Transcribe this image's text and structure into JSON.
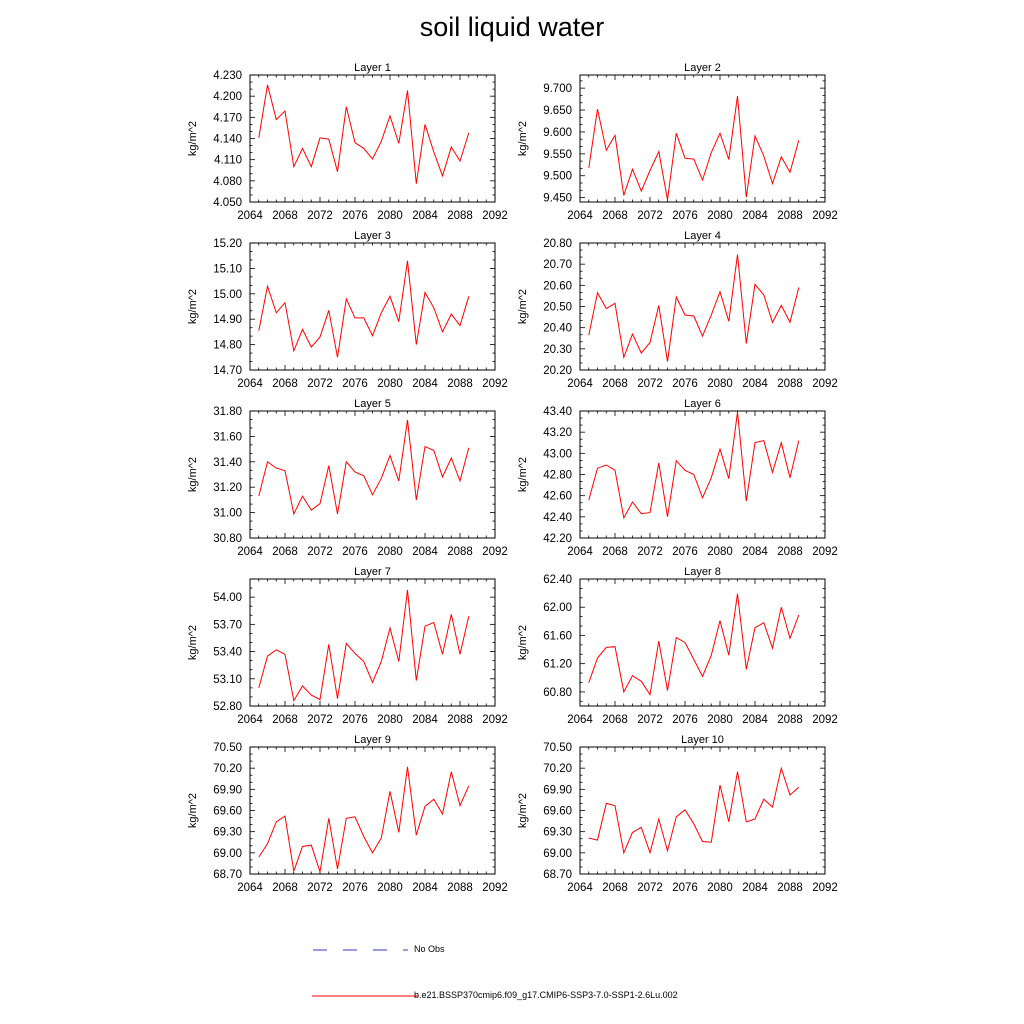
{
  "title": "soil liquid water",
  "colors": {
    "series": "#ff0000",
    "no_obs": "#3333cc",
    "axis": "#000000"
  },
  "legend": {
    "no_obs_label": "No Obs",
    "simulation_label": "b.e21.BSSP370cmip6.f09_g17.CMIP6-SSP3-7.0-SSP1-2.6Lu.002"
  },
  "chart_data": [
    {
      "type": "line",
      "title": "Layer 1",
      "ylabel": "kg/m^2",
      "xlim": [
        2064,
        2092
      ],
      "xticks": [
        2064,
        2068,
        2072,
        2076,
        2080,
        2084,
        2088,
        2092
      ],
      "ylim": [
        4.05,
        4.23
      ],
      "yticks": [
        "4.050",
        "4.080",
        "4.110",
        "4.140",
        "4.170",
        "4.200",
        "4.230"
      ],
      "x": [
        2065,
        2066,
        2067,
        2068,
        2069,
        2070,
        2071,
        2072,
        2073,
        2074,
        2075,
        2076,
        2077,
        2078,
        2079,
        2080,
        2081,
        2082,
        2083,
        2084,
        2085,
        2086,
        2087,
        2088,
        2089
      ],
      "values": [
        4.141,
        4.216,
        4.167,
        4.179,
        4.1,
        4.126,
        4.1,
        4.141,
        4.139,
        4.093,
        4.185,
        4.134,
        4.126,
        4.111,
        4.136,
        4.172,
        4.133,
        4.208,
        4.076,
        4.16,
        4.121,
        4.087,
        4.128,
        4.108,
        4.148
      ]
    },
    {
      "type": "line",
      "title": "Layer 2",
      "ylabel": "kg/m^2",
      "xlim": [
        2064,
        2092
      ],
      "xticks": [
        2064,
        2068,
        2072,
        2076,
        2080,
        2084,
        2088,
        2092
      ],
      "ylim": [
        9.44,
        9.73
      ],
      "yticks": [
        "9.450",
        "9.500",
        "9.550",
        "9.600",
        "9.650",
        "9.700"
      ],
      "x": [
        2065,
        2066,
        2067,
        2068,
        2069,
        2070,
        2071,
        2072,
        2073,
        2074,
        2075,
        2076,
        2077,
        2078,
        2079,
        2080,
        2081,
        2082,
        2083,
        2084,
        2085,
        2086,
        2087,
        2088,
        2089
      ],
      "values": [
        9.518,
        9.652,
        9.558,
        9.592,
        9.455,
        9.515,
        9.465,
        9.512,
        9.555,
        9.445,
        9.597,
        9.54,
        9.538,
        9.49,
        9.553,
        9.597,
        9.537,
        9.682,
        9.451,
        9.591,
        9.545,
        9.482,
        9.543,
        9.508,
        9.581
      ]
    },
    {
      "type": "line",
      "title": "Layer 3",
      "ylabel": "kg/m^2",
      "xlim": [
        2064,
        2092
      ],
      "xticks": [
        2064,
        2068,
        2072,
        2076,
        2080,
        2084,
        2088,
        2092
      ],
      "ylim": [
        14.7,
        15.2
      ],
      "yticks": [
        "14.70",
        "14.80",
        "14.90",
        "15.00",
        "15.10",
        "15.20"
      ],
      "x": [
        2065,
        2066,
        2067,
        2068,
        2069,
        2070,
        2071,
        2072,
        2073,
        2074,
        2075,
        2076,
        2077,
        2078,
        2079,
        2080,
        2081,
        2082,
        2083,
        2084,
        2085,
        2086,
        2087,
        2088,
        2089
      ],
      "values": [
        14.855,
        15.03,
        14.925,
        14.965,
        14.775,
        14.86,
        14.79,
        14.83,
        14.935,
        14.75,
        14.98,
        14.905,
        14.905,
        14.835,
        14.925,
        14.99,
        14.89,
        15.13,
        14.8,
        15.005,
        14.945,
        14.85,
        14.92,
        14.875,
        14.99
      ]
    },
    {
      "type": "line",
      "title": "Layer 4",
      "ylabel": "kg/m^2",
      "xlim": [
        2064,
        2092
      ],
      "xticks": [
        2064,
        2068,
        2072,
        2076,
        2080,
        2084,
        2088,
        2092
      ],
      "ylim": [
        20.2,
        20.8
      ],
      "yticks": [
        "20.20",
        "20.30",
        "20.40",
        "20.50",
        "20.60",
        "20.70",
        "20.80"
      ],
      "x": [
        2065,
        2066,
        2067,
        2068,
        2069,
        2070,
        2071,
        2072,
        2073,
        2074,
        2075,
        2076,
        2077,
        2078,
        2079,
        2080,
        2081,
        2082,
        2083,
        2084,
        2085,
        2086,
        2087,
        2088,
        2089
      ],
      "values": [
        20.365,
        20.565,
        20.49,
        20.515,
        20.26,
        20.37,
        20.28,
        20.33,
        20.505,
        20.24,
        20.545,
        20.46,
        20.455,
        20.36,
        20.46,
        20.57,
        20.43,
        20.745,
        20.325,
        20.605,
        20.555,
        20.425,
        20.505,
        20.425,
        20.59
      ]
    },
    {
      "type": "line",
      "title": "Layer 5",
      "ylabel": "kg/m^2",
      "xlim": [
        2064,
        2092
      ],
      "xticks": [
        2064,
        2068,
        2072,
        2076,
        2080,
        2084,
        2088,
        2092
      ],
      "ylim": [
        30.8,
        31.8
      ],
      "yticks": [
        "30.80",
        "31.00",
        "31.20",
        "31.40",
        "31.60",
        "31.80"
      ],
      "x": [
        2065,
        2066,
        2067,
        2068,
        2069,
        2070,
        2071,
        2072,
        2073,
        2074,
        2075,
        2076,
        2077,
        2078,
        2079,
        2080,
        2081,
        2082,
        2083,
        2084,
        2085,
        2086,
        2087,
        2088,
        2089
      ],
      "values": [
        31.13,
        31.4,
        31.35,
        31.33,
        30.99,
        31.13,
        31.02,
        31.07,
        31.37,
        30.99,
        31.4,
        31.32,
        31.29,
        31.14,
        31.27,
        31.45,
        31.25,
        31.73,
        31.1,
        31.52,
        31.49,
        31.28,
        31.43,
        31.25,
        31.51
      ]
    },
    {
      "type": "line",
      "title": "Layer 6",
      "ylabel": "kg/m^2",
      "xlim": [
        2064,
        2092
      ],
      "xticks": [
        2064,
        2068,
        2072,
        2076,
        2080,
        2084,
        2088,
        2092
      ],
      "ylim": [
        42.2,
        43.4
      ],
      "yticks": [
        "42.20",
        "42.40",
        "42.60",
        "42.80",
        "43.00",
        "43.20",
        "43.40"
      ],
      "x": [
        2065,
        2066,
        2067,
        2068,
        2069,
        2070,
        2071,
        2072,
        2073,
        2074,
        2075,
        2076,
        2077,
        2078,
        2079,
        2080,
        2081,
        2082,
        2083,
        2084,
        2085,
        2086,
        2087,
        2088,
        2089
      ],
      "values": [
        42.56,
        42.86,
        42.89,
        42.84,
        42.39,
        42.54,
        42.43,
        42.44,
        42.91,
        42.4,
        42.93,
        42.84,
        42.8,
        42.58,
        42.77,
        43.04,
        42.76,
        43.39,
        42.55,
        43.1,
        43.12,
        42.82,
        43.1,
        42.77,
        43.12
      ]
    },
    {
      "type": "line",
      "title": "Layer 7",
      "ylabel": "kg/m^2",
      "xlim": [
        2064,
        2092
      ],
      "xticks": [
        2064,
        2068,
        2072,
        2076,
        2080,
        2084,
        2088,
        2092
      ],
      "ylim": [
        52.8,
        54.2
      ],
      "yticks": [
        "52.80",
        "53.10",
        "53.40",
        "53.70",
        "54.00"
      ],
      "x": [
        2065,
        2066,
        2067,
        2068,
        2069,
        2070,
        2071,
        2072,
        2073,
        2074,
        2075,
        2076,
        2077,
        2078,
        2079,
        2080,
        2081,
        2082,
        2083,
        2084,
        2085,
        2086,
        2087,
        2088,
        2089
      ],
      "values": [
        53.0,
        53.35,
        53.42,
        53.37,
        52.86,
        53.02,
        52.92,
        52.87,
        53.48,
        52.88,
        53.49,
        53.38,
        53.29,
        53.06,
        53.29,
        53.66,
        53.29,
        54.08,
        53.08,
        53.68,
        53.72,
        53.37,
        53.81,
        53.37,
        53.79
      ]
    },
    {
      "type": "line",
      "title": "Layer 8",
      "ylabel": "kg/m^2",
      "xlim": [
        2064,
        2092
      ],
      "xticks": [
        2064,
        2068,
        2072,
        2076,
        2080,
        2084,
        2088,
        2092
      ],
      "ylim": [
        60.6,
        62.4
      ],
      "yticks": [
        "60.80",
        "61.20",
        "61.60",
        "62.00",
        "62.40"
      ],
      "x": [
        2065,
        2066,
        2067,
        2068,
        2069,
        2070,
        2071,
        2072,
        2073,
        2074,
        2075,
        2076,
        2077,
        2078,
        2079,
        2080,
        2081,
        2082,
        2083,
        2084,
        2085,
        2086,
        2087,
        2088,
        2089
      ],
      "values": [
        60.93,
        61.28,
        61.43,
        61.44,
        60.8,
        61.03,
        60.95,
        60.76,
        61.52,
        60.82,
        61.57,
        61.5,
        61.26,
        61.02,
        61.32,
        61.81,
        61.32,
        62.19,
        61.12,
        61.71,
        61.78,
        61.42,
        62.0,
        61.56,
        61.89
      ]
    },
    {
      "type": "line",
      "title": "Layer 9",
      "ylabel": "kg/m^2",
      "xlim": [
        2064,
        2092
      ],
      "xticks": [
        2064,
        2068,
        2072,
        2076,
        2080,
        2084,
        2088,
        2092
      ],
      "ylim": [
        68.7,
        70.5
      ],
      "yticks": [
        "68.70",
        "69.00",
        "69.30",
        "69.60",
        "69.90",
        "70.20",
        "70.50"
      ],
      "x": [
        2065,
        2066,
        2067,
        2068,
        2069,
        2070,
        2071,
        2072,
        2073,
        2074,
        2075,
        2076,
        2077,
        2078,
        2079,
        2080,
        2081,
        2082,
        2083,
        2084,
        2085,
        2086,
        2087,
        2088,
        2089
      ],
      "values": [
        68.94,
        69.13,
        69.44,
        69.52,
        68.74,
        69.09,
        69.11,
        68.73,
        69.49,
        68.77,
        69.49,
        69.51,
        69.23,
        69.0,
        69.21,
        69.87,
        69.29,
        70.22,
        69.25,
        69.66,
        69.76,
        69.55,
        70.15,
        69.67,
        69.95
      ]
    },
    {
      "type": "line",
      "title": "Layer 10",
      "ylabel": "kg/m^2",
      "xlim": [
        2064,
        2092
      ],
      "xticks": [
        2064,
        2068,
        2072,
        2076,
        2080,
        2084,
        2088,
        2092
      ],
      "ylim": [
        68.7,
        70.5
      ],
      "yticks": [
        "68.70",
        "69.00",
        "69.30",
        "69.60",
        "69.90",
        "70.20",
        "70.50"
      ],
      "x": [
        2065,
        2066,
        2067,
        2068,
        2069,
        2070,
        2071,
        2072,
        2073,
        2074,
        2075,
        2076,
        2077,
        2078,
        2079,
        2080,
        2081,
        2082,
        2083,
        2084,
        2085,
        2086,
        2087,
        2088,
        2089
      ],
      "values": [
        69.21,
        69.18,
        69.7,
        69.67,
        69.0,
        69.29,
        69.36,
        69.0,
        69.48,
        69.03,
        69.51,
        69.61,
        69.41,
        69.16,
        69.15,
        69.96,
        69.44,
        70.15,
        69.44,
        69.48,
        69.76,
        69.65,
        70.2,
        69.82,
        69.93
      ]
    }
  ]
}
